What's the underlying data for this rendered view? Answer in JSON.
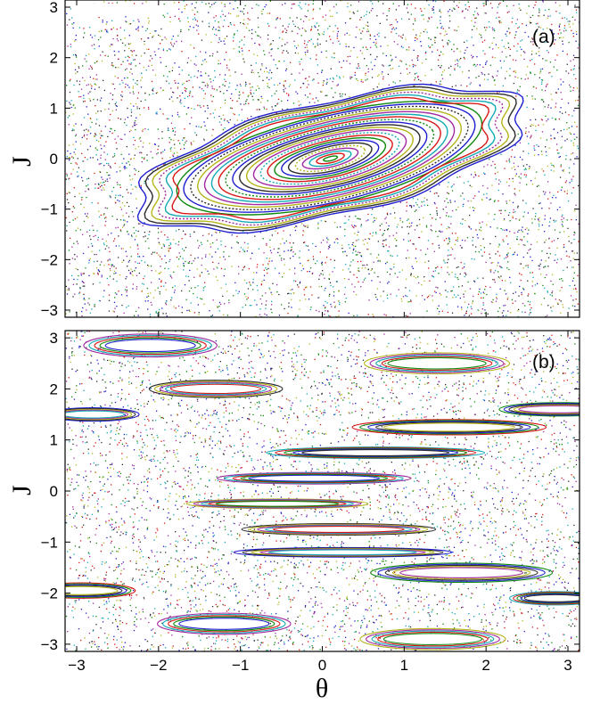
{
  "chart_data": [
    {
      "type": "scatter",
      "panel_label": "(a)",
      "xlabel": "",
      "ylabel": "J",
      "xlim": [
        -3.1416,
        3.1416
      ],
      "ylim": [
        -3.1416,
        3.1416
      ],
      "xticks": [],
      "yticks": [
        -3,
        -2,
        -1,
        0,
        1,
        2,
        3
      ],
      "ytick_labels": [
        "−3",
        "−2",
        "−1",
        "0",
        "1",
        "2",
        "3"
      ],
      "grid": false,
      "background": "chaotic sea of scattered points",
      "island": {
        "center": [
          0.1,
          0.0
        ],
        "rotation_deg": 24,
        "outer_semi_axes": [
          2.55,
          1.08
        ],
        "num_invariant_curves": 28,
        "resonance_chains": "8-island chain near boundary"
      },
      "voids": [
        {
          "center": [
            -2.6,
            2.95
          ],
          "semi_axes": [
            0.45,
            0.12
          ]
        },
        {
          "center": [
            0.75,
            -2.95
          ],
          "semi_axes": [
            0.55,
            0.12
          ]
        }
      ]
    },
    {
      "type": "scatter",
      "panel_label": "(b)",
      "xlabel": "θ",
      "ylabel": "J",
      "xlim": [
        -3.1416,
        3.1416
      ],
      "ylim": [
        -3.1416,
        3.1416
      ],
      "xticks": [
        -3,
        -2,
        -1,
        0,
        1,
        2,
        3
      ],
      "xtick_labels": [
        "−3",
        "−2",
        "−1",
        "0",
        "1",
        "2",
        "3"
      ],
      "yticks": [
        -3,
        -2,
        -1,
        0,
        1,
        2,
        3
      ],
      "ytick_labels": [
        "−3",
        "−2",
        "−1",
        "0",
        "1",
        "2",
        "3"
      ],
      "grid": false,
      "background": "chaotic sea of scattered points",
      "islands": [
        {
          "center": [
            -2.1,
            2.85
          ],
          "semi_axes": [
            0.55,
            0.12
          ]
        },
        {
          "center": [
            1.4,
            2.5
          ],
          "semi_axes": [
            0.6,
            0.11
          ]
        },
        {
          "center": [
            -1.3,
            2.0
          ],
          "semi_axes": [
            0.55,
            0.09
          ]
        },
        {
          "center": [
            -2.8,
            1.5
          ],
          "semi_axes": [
            0.38,
            0.07
          ]
        },
        {
          "center": [
            2.9,
            1.6
          ],
          "semi_axes": [
            0.5,
            0.07
          ]
        },
        {
          "center": [
            1.55,
            1.25
          ],
          "semi_axes": [
            0.8,
            0.08
          ]
        },
        {
          "center": [
            0.65,
            0.75
          ],
          "semi_axes": [
            0.9,
            0.06
          ]
        },
        {
          "center": [
            -0.1,
            0.25
          ],
          "semi_axes": [
            0.8,
            0.06
          ]
        },
        {
          "center": [
            -0.55,
            -0.25
          ],
          "semi_axes": [
            0.75,
            0.05
          ]
        },
        {
          "center": [
            0.2,
            -0.75
          ],
          "semi_axes": [
            0.8,
            0.06
          ]
        },
        {
          "center": [
            0.25,
            -1.2
          ],
          "semi_axes": [
            0.9,
            0.05
          ]
        },
        {
          "center": [
            1.7,
            -1.6
          ],
          "semi_axes": [
            0.75,
            0.1
          ]
        },
        {
          "center": [
            -2.95,
            -1.95
          ],
          "semi_axes": [
            0.45,
            0.08
          ]
        },
        {
          "center": [
            2.85,
            -2.1
          ],
          "semi_axes": [
            0.38,
            0.07
          ]
        },
        {
          "center": [
            -1.2,
            -2.6
          ],
          "semi_axes": [
            0.55,
            0.11
          ]
        },
        {
          "center": [
            1.35,
            -2.9
          ],
          "semi_axes": [
            0.6,
            0.11
          ]
        }
      ]
    }
  ],
  "colors": {
    "point_palette": [
      "#1f1fd0",
      "#0f8a0f",
      "#d81818",
      "#13a9b5",
      "#a12aa1",
      "#b5b51c",
      "#2b2b2b"
    ],
    "axes": "#000000",
    "background": "#ffffff"
  }
}
